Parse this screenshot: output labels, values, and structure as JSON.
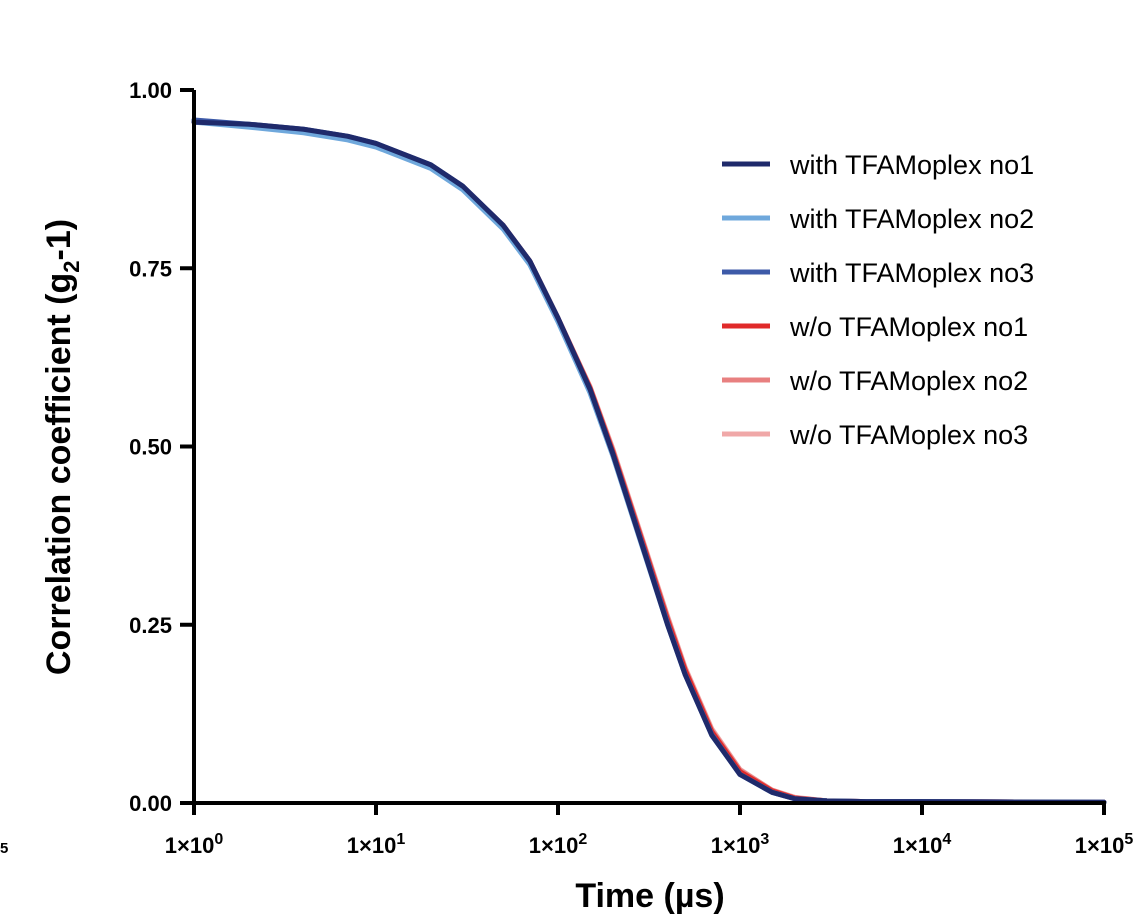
{
  "chart_data": {
    "type": "line",
    "xlabel": "Time (µs)",
    "ylabel_main": "Correlation coefficient (g",
    "ylabel_sub": "2",
    "ylabel_tail": "-1)",
    "x_scale": "log",
    "xlim": [
      1,
      100000
    ],
    "ylim": [
      0,
      1
    ],
    "legend_position": "top-right",
    "grid": false,
    "x_ticks": [
      {
        "value": 1,
        "base": "1×10",
        "exp": "0"
      },
      {
        "value": 10,
        "base": "1×10",
        "exp": "1"
      },
      {
        "value": 100,
        "base": "1×10",
        "exp": "2"
      },
      {
        "value": 1000,
        "base": "1×10",
        "exp": "3"
      },
      {
        "value": 10000,
        "base": "1×10",
        "exp": "4"
      },
      {
        "value": 100000,
        "base": "1×10",
        "exp": "5"
      }
    ],
    "y_ticks": [
      {
        "value": 0,
        "label": "0.00"
      },
      {
        "value": 0.25,
        "label": "0.25"
      },
      {
        "value": 0.5,
        "label": "0.50"
      },
      {
        "value": 0.75,
        "label": "0.75"
      },
      {
        "value": 1,
        "label": "1.00"
      }
    ],
    "left_edge_text": "5",
    "x": [
      1,
      2,
      4,
      7,
      10,
      20,
      30,
      50,
      70,
      100,
      150,
      200,
      300,
      400,
      500,
      700,
      1000,
      1500,
      2000,
      3000,
      5000,
      10000,
      100000
    ],
    "series": [
      {
        "name": "with TFAMoplex no1",
        "color": "#1f2a6b",
        "values": [
          0.955,
          0.952,
          0.945,
          0.935,
          0.925,
          0.895,
          0.865,
          0.81,
          0.76,
          0.68,
          0.58,
          0.49,
          0.35,
          0.25,
          0.18,
          0.095,
          0.04,
          0.015,
          0.006,
          0.003,
          0.002,
          0.002,
          0.001
        ]
      },
      {
        "name": "with TFAMoplex no2",
        "color": "#6fa8dc",
        "values": [
          0.955,
          0.948,
          0.94,
          0.93,
          0.92,
          0.89,
          0.86,
          0.805,
          0.755,
          0.675,
          0.575,
          0.487,
          0.348,
          0.25,
          0.18,
          0.095,
          0.04,
          0.015,
          0.006,
          0.003,
          0.002,
          0.002,
          0.001
        ]
      },
      {
        "name": "with TFAMoplex no3",
        "color": "#3d5aa8",
        "values": [
          0.958,
          0.952,
          0.945,
          0.935,
          0.925,
          0.895,
          0.865,
          0.81,
          0.76,
          0.68,
          0.58,
          0.49,
          0.352,
          0.252,
          0.18,
          0.096,
          0.04,
          0.015,
          0.006,
          0.003,
          0.002,
          0.002,
          0.001
        ]
      },
      {
        "name": "w/o TFAMoplex no1",
        "color": "#e02a2a",
        "values": [
          0.955,
          0.951,
          0.944,
          0.934,
          0.924,
          0.894,
          0.864,
          0.81,
          0.76,
          0.68,
          0.582,
          0.493,
          0.356,
          0.257,
          0.186,
          0.1,
          0.044,
          0.017,
          0.007,
          0.003,
          0.002,
          0.002,
          0.001
        ]
      },
      {
        "name": "w/o TFAMoplex no2",
        "color": "#e88080",
        "values": [
          0.955,
          0.951,
          0.944,
          0.934,
          0.924,
          0.894,
          0.864,
          0.81,
          0.76,
          0.68,
          0.583,
          0.495,
          0.358,
          0.26,
          0.188,
          0.102,
          0.046,
          0.018,
          0.007,
          0.003,
          0.002,
          0.002,
          0.001
        ]
      },
      {
        "name": "w/o TFAMoplex no3",
        "color": "#f0a8a8",
        "values": [
          0.955,
          0.951,
          0.944,
          0.934,
          0.924,
          0.894,
          0.864,
          0.81,
          0.76,
          0.68,
          0.584,
          0.497,
          0.36,
          0.262,
          0.19,
          0.104,
          0.047,
          0.018,
          0.008,
          0.003,
          0.002,
          0.002,
          0.001
        ]
      }
    ]
  }
}
